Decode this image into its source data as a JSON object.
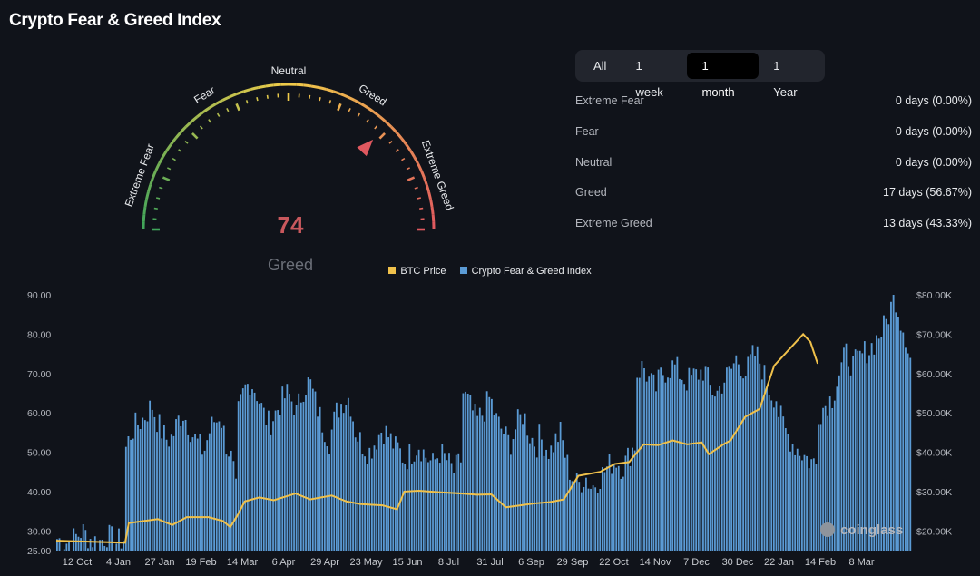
{
  "page": {
    "title": "Crypto Fear & Greed Index"
  },
  "gauge": {
    "value": "74",
    "label": "Greed",
    "zones": [
      "Extreme Fear",
      "Fear",
      "Neutral",
      "Greed",
      "Extreme Greed"
    ],
    "pointer_value": 74
  },
  "tabs": [
    {
      "label": "All",
      "active": false
    },
    {
      "label": "1 week",
      "active": false
    },
    {
      "label": "1 month",
      "active": true
    },
    {
      "label": "1 Year",
      "active": false
    }
  ],
  "stats": [
    {
      "name": "Extreme Fear",
      "value": "0 days (0.00%)"
    },
    {
      "name": "Fear",
      "value": "0 days (0.00%)"
    },
    {
      "name": "Neutral",
      "value": "0 days (0.00%)"
    },
    {
      "name": "Greed",
      "value": "17 days (56.67%)"
    },
    {
      "name": "Extreme Greed",
      "value": "13 days (43.33%)"
    }
  ],
  "colors": {
    "bar": "#5b9bd5",
    "line": "#f0c14b",
    "extreme_fear": "#3fa45a",
    "neutral": "#f1cc4a",
    "extreme_greed": "#e0585f"
  },
  "watermark": "coinglass",
  "chart_data": {
    "type": "bar",
    "legend": [
      "BTC Price",
      "Crypto Fear & Greed Index"
    ],
    "legend_placement": "top-center",
    "x_ticks": [
      "12 Oct",
      "4 Jan",
      "27 Jan",
      "19 Feb",
      "14 Mar",
      "6 Apr",
      "29 Apr",
      "23 May",
      "15 Jun",
      "8 Jul",
      "31 Jul",
      "6 Sep",
      "29 Sep",
      "22 Oct",
      "14 Nov",
      "7 Dec",
      "30 Dec",
      "22 Jan",
      "14 Feb",
      "8 Mar"
    ],
    "y_left_ticks": [
      "25.00",
      "30.00",
      "40.00",
      "50.00",
      "60.00",
      "70.00",
      "80.00",
      "90.00"
    ],
    "y_right_ticks": [
      "$20.00K",
      "$30.00K",
      "$40.00K",
      "$50.00K",
      "$60.00K",
      "$70.00K",
      "$80.00K"
    ],
    "ylim_left": [
      25,
      90
    ],
    "ylim_right": [
      15000,
      80000
    ],
    "grid": false,
    "series": [
      {
        "name": "Crypto Fear & Greed Index",
        "axis": "left",
        "segments": [
          {
            "from": 0.0,
            "to": 0.095,
            "values": [
              28,
              27,
              28,
              30,
              28,
              27,
              29,
              27,
              28
            ]
          },
          {
            "from": 0.095,
            "to": 0.22,
            "values": [
              51,
              55,
              57,
              58,
              60,
              62,
              58,
              55,
              53,
              54,
              58,
              60,
              57,
              54,
              52,
              50,
              55,
              58
            ]
          },
          {
            "from": 0.22,
            "to": 0.25,
            "values": [
              58,
              60,
              56,
              52,
              50,
              47,
              40
            ]
          },
          {
            "from": 0.25,
            "to": 0.33,
            "values": [
              60,
              66,
              68,
              65,
              60,
              57,
              60,
              63,
              65,
              62
            ]
          },
          {
            "from": 0.33,
            "to": 0.47,
            "values": [
              60,
              66,
              68,
              62,
              57,
              53,
              60,
              63,
              64,
              55,
              52,
              50,
              53,
              56,
              54,
              51
            ]
          },
          {
            "from": 0.47,
            "to": 0.56,
            "values": [
              51,
              48,
              50,
              52,
              49,
              47,
              50,
              48,
              45,
              48
            ]
          },
          {
            "from": 0.56,
            "to": 0.665,
            "values": [
              65,
              62,
              58,
              60,
              64,
              58,
              55,
              52,
              57,
              60,
              54,
              52
            ]
          },
          {
            "from": 0.665,
            "to": 0.72,
            "values": [
              54,
              52,
              50,
              53,
              55,
              48,
              44,
              42
            ]
          },
          {
            "from": 0.72,
            "to": 0.8,
            "values": [
              42,
              44,
              41,
              43,
              45,
              47,
              48,
              46,
              49,
              52
            ]
          },
          {
            "from": 0.8,
            "to": 0.93,
            "values": [
              70,
              72,
              68,
              66,
              70,
              71,
              72,
              70,
              68,
              69,
              70,
              71,
              66,
              65,
              68,
              70
            ]
          },
          {
            "from": 0.93,
            "to": 0.995,
            "values": [
              71,
              74,
              72,
              70,
              74,
              75,
              72,
              68,
              65,
              64
            ]
          },
          {
            "from": 0.995,
            "to": 1.05,
            "values": [
              60,
              55,
              52,
              50,
              48,
              47
            ]
          },
          {
            "from": 1.05,
            "to": 1.12,
            "values": [
              60,
              62,
              64,
              70,
              75,
              72,
              74,
              76
            ]
          },
          {
            "from": 1.12,
            "to": 1.18,
            "values": [
              76,
              78,
              80,
              82,
              86,
              90,
              84,
              80,
              74
            ]
          }
        ]
      },
      {
        "name": "BTC Price",
        "axis": "right",
        "points": [
          [
            0.0,
            17500
          ],
          [
            0.095,
            17000
          ],
          [
            0.1,
            22000
          ],
          [
            0.14,
            23000
          ],
          [
            0.16,
            21500
          ],
          [
            0.18,
            23500
          ],
          [
            0.21,
            23500
          ],
          [
            0.23,
            22500
          ],
          [
            0.24,
            21000
          ],
          [
            0.25,
            24000
          ],
          [
            0.26,
            27500
          ],
          [
            0.28,
            28500
          ],
          [
            0.3,
            27800
          ],
          [
            0.33,
            29500
          ],
          [
            0.35,
            28000
          ],
          [
            0.38,
            29000
          ],
          [
            0.4,
            27500
          ],
          [
            0.42,
            26800
          ],
          [
            0.45,
            26500
          ],
          [
            0.47,
            25500
          ],
          [
            0.48,
            30000
          ],
          [
            0.5,
            30200
          ],
          [
            0.53,
            29800
          ],
          [
            0.56,
            29500
          ],
          [
            0.58,
            29200
          ],
          [
            0.6,
            29300
          ],
          [
            0.62,
            26000
          ],
          [
            0.64,
            26500
          ],
          [
            0.66,
            27000
          ],
          [
            0.68,
            27300
          ],
          [
            0.7,
            28000
          ],
          [
            0.72,
            34000
          ],
          [
            0.75,
            35000
          ],
          [
            0.77,
            37000
          ],
          [
            0.79,
            37500
          ],
          [
            0.81,
            42000
          ],
          [
            0.83,
            41800
          ],
          [
            0.85,
            43000
          ],
          [
            0.87,
            42000
          ],
          [
            0.89,
            42500
          ],
          [
            0.9,
            39500
          ],
          [
            0.92,
            42000
          ],
          [
            0.93,
            43000
          ],
          [
            0.95,
            49000
          ],
          [
            0.97,
            51000
          ],
          [
            0.99,
            62000
          ],
          [
            1.01,
            66000
          ],
          [
            1.03,
            70000
          ],
          [
            1.04,
            68000
          ],
          [
            1.05,
            62500
          ]
        ]
      }
    ]
  }
}
